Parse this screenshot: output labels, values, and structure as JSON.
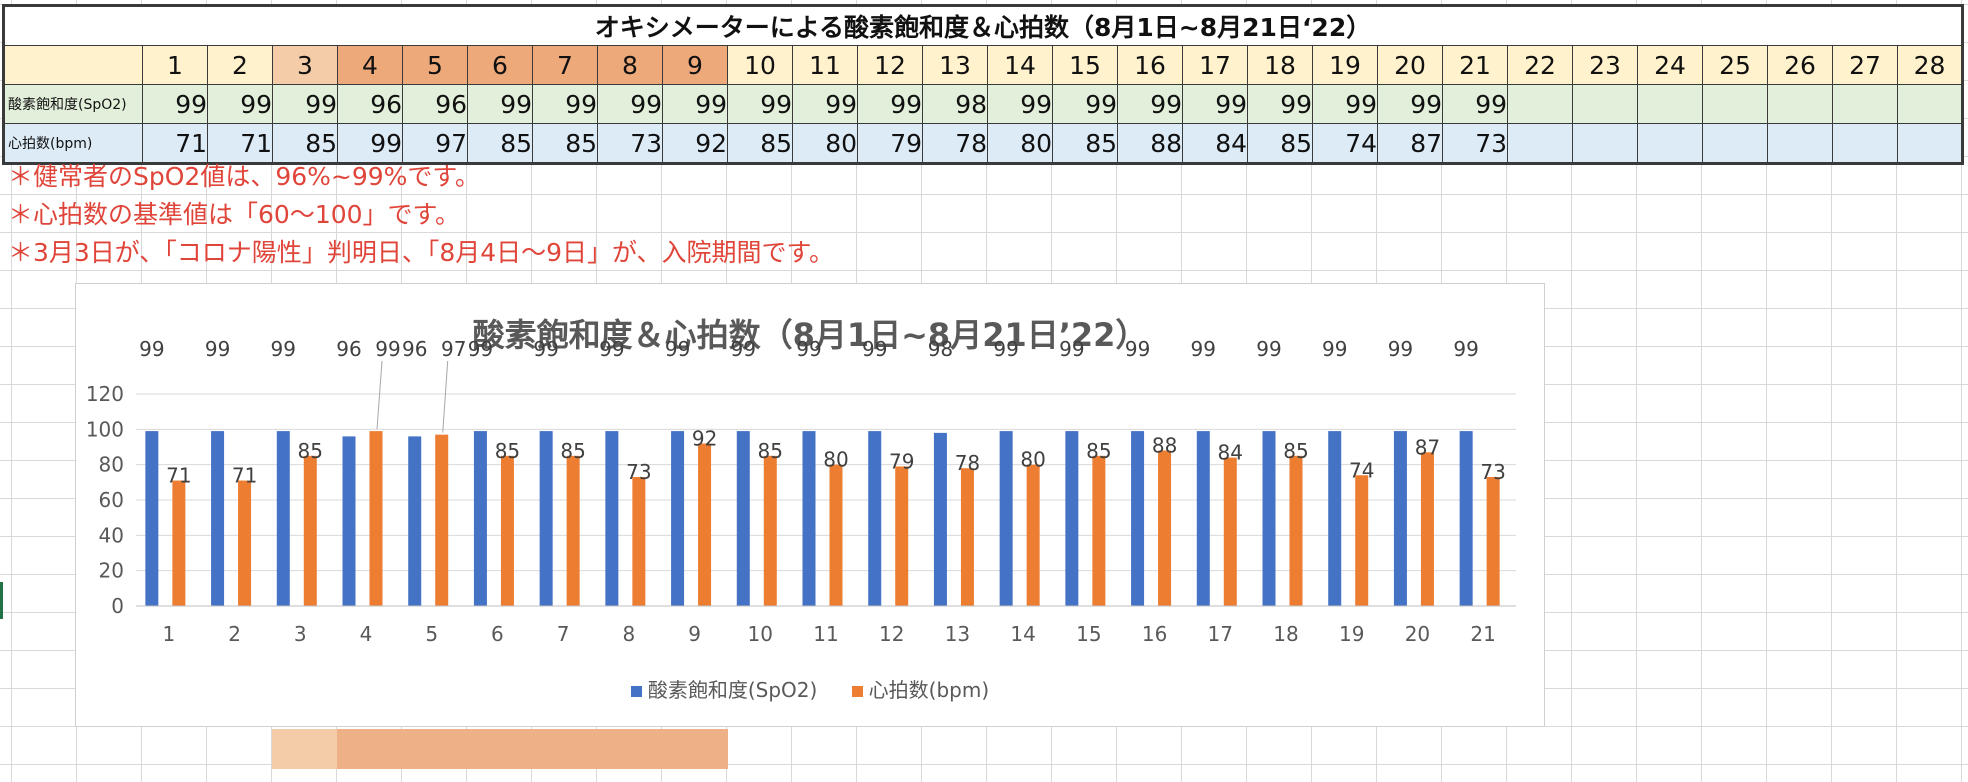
{
  "sheet": {
    "title": "オキシメーターによる酸素飽和度＆心拍数（8月1日~8月21日‘22）",
    "day_headers": [
      "1",
      "2",
      "3",
      "4",
      "5",
      "6",
      "7",
      "8",
      "9",
      "10",
      "11",
      "12",
      "13",
      "14",
      "15",
      "16",
      "17",
      "18",
      "19",
      "20",
      "21",
      "22",
      "23",
      "24",
      "25",
      "26",
      "27",
      "28"
    ],
    "highlight_light_days": [
      3
    ],
    "highlight_dark_days": [
      4,
      5,
      6,
      7,
      8,
      9
    ],
    "spo2_label": "酸素飽和度(SpO2)",
    "bpm_label": "心拍数(bpm)",
    "spo2_values": [
      99,
      99,
      99,
      96,
      96,
      99,
      99,
      99,
      99,
      99,
      99,
      99,
      98,
      99,
      99,
      99,
      99,
      99,
      99,
      99,
      99
    ],
    "bpm_values": [
      71,
      71,
      85,
      99,
      97,
      85,
      85,
      73,
      92,
      85,
      80,
      79,
      78,
      80,
      85,
      88,
      84,
      85,
      74,
      87,
      73
    ]
  },
  "notes": [
    "＊健常者のSpO2値は、96%~99%です。",
    "＊心拍数の基準値は「60～100」です。",
    "＊3月3日が、「コロナ陽性」判明日、「8月4日～9日」が、入院期間です。"
  ],
  "colors": {
    "spo2": "#4472c4",
    "bpm": "#ed7d31",
    "note_text": "#e0453a",
    "header_bg": "#fff2cc",
    "header_light": "#f4cca8",
    "header_dark": "#eea97b",
    "spo2_row_bg": "#e2efda",
    "bpm_row_bg": "#ddebf7"
  },
  "chart_data": {
    "type": "bar",
    "title": "酸素飽和度＆心拍数（8月1日~8月21日’22）",
    "categories": [
      "1",
      "2",
      "3",
      "4",
      "5",
      "6",
      "7",
      "8",
      "9",
      "10",
      "11",
      "12",
      "13",
      "14",
      "15",
      "16",
      "17",
      "18",
      "19",
      "20",
      "21"
    ],
    "series": [
      {
        "name": "酸素飽和度(SpO2)",
        "values": [
          99,
          99,
          99,
          96,
          96,
          99,
          99,
          99,
          99,
          99,
          99,
          99,
          98,
          99,
          99,
          99,
          99,
          99,
          99,
          99,
          99
        ]
      },
      {
        "name": "心拍数(bpm)",
        "values": [
          71,
          71,
          85,
          99,
          97,
          85,
          85,
          73,
          92,
          85,
          80,
          79,
          78,
          80,
          85,
          88,
          84,
          85,
          74,
          87,
          73
        ]
      }
    ],
    "yticks": [
      0,
      20,
      40,
      60,
      80,
      100,
      120
    ],
    "ylim": [
      0,
      120
    ],
    "grid": true,
    "legend": "bottom",
    "data_labels": true
  }
}
